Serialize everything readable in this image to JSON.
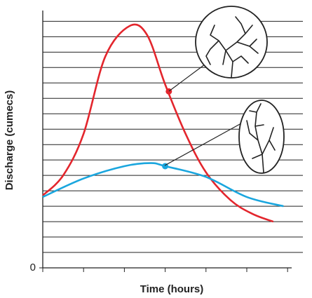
{
  "chart_data": {
    "type": "line",
    "x_label": "Time (hours)",
    "y_label": "Discharge (cumecs)",
    "xlim": [
      0,
      6.1
    ],
    "ylim": [
      0,
      16.7
    ],
    "yticks": [
      0
    ],
    "ygrid": [
      1,
      2,
      3,
      4,
      5,
      6,
      7,
      8,
      9,
      10,
      11,
      12,
      13,
      14,
      15,
      16
    ],
    "xtick_marks": [
      0,
      1,
      2,
      3,
      4,
      5,
      6
    ],
    "series": [
      {
        "color": "#e3262d",
        "x": [
          0,
          0.5,
          1,
          1.53,
          2.13,
          2.56,
          3,
          3.5,
          4,
          4.6,
          5.14,
          5.65
        ],
        "values": [
          4.7,
          6.0,
          8.7,
          13.7,
          15.7,
          15.1,
          11.9,
          8.7,
          6.2,
          4.4,
          3.5,
          3.0
        ],
        "marker": {
          "x": 3.09,
          "y": 11.45
        }
      },
      {
        "color": "#1aa6de",
        "x": [
          0,
          1,
          2,
          2.65,
          3,
          4,
          5,
          5.9
        ],
        "values": [
          4.6,
          5.8,
          6.6,
          6.8,
          6.6,
          5.9,
          4.6,
          4.0
        ],
        "marker": {
          "x": 3,
          "y": 6.6
        }
      }
    ]
  }
}
